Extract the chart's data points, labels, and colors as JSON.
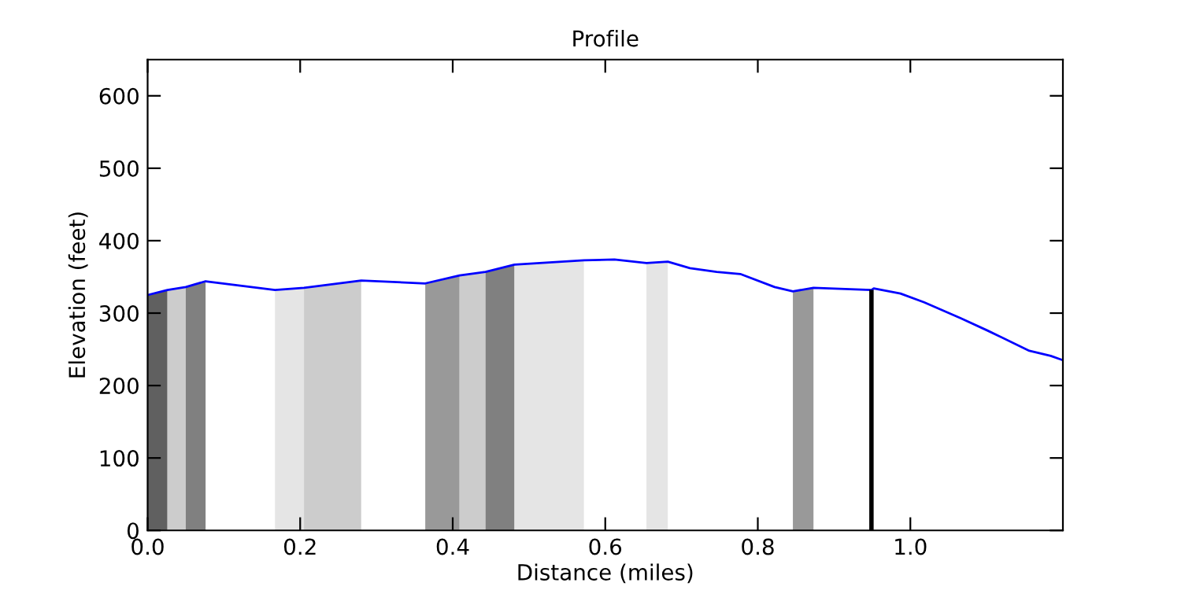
{
  "chart_data": {
    "type": "line",
    "title": "Profile",
    "xlabel": "Distance (miles)",
    "ylabel": "Elevation (feet)",
    "series": [
      {
        "color": "#0000ff",
        "x": [
          0,
          0.026,
          0.05,
          0.076,
          0.167,
          0.205,
          0.28,
          0.364,
          0.409,
          0.443,
          0.481,
          0.572,
          0.612,
          0.654,
          0.682,
          0.711,
          0.746,
          0.777,
          0.822,
          0.846,
          0.873,
          0.949,
          0.952,
          0.987,
          1.018,
          1.066,
          1.101,
          1.156,
          1.184,
          1.2
        ],
        "values": [
          325,
          332,
          336,
          344,
          332,
          335,
          345,
          341,
          352,
          357,
          367,
          373,
          374,
          369,
          371,
          362,
          357,
          354,
          336,
          330,
          335,
          332,
          334,
          327,
          315,
          293,
          276,
          248,
          241,
          235
        ]
      }
    ],
    "bands": [
      {
        "axis": "x",
        "from": 0,
        "to": 0.026,
        "color": "#606060"
      },
      {
        "axis": "x",
        "from": 0.026,
        "to": 0.05,
        "color": "#cccccc"
      },
      {
        "axis": "x",
        "from": 0.05,
        "to": 0.076,
        "color": "#808080"
      },
      {
        "axis": "x",
        "from": 0.167,
        "to": 0.205,
        "color": "#e5e5e5"
      },
      {
        "axis": "x",
        "from": 0.205,
        "to": 0.28,
        "color": "#cccccc"
      },
      {
        "axis": "x",
        "from": 0.364,
        "to": 0.409,
        "color": "#999999"
      },
      {
        "axis": "x",
        "from": 0.409,
        "to": 0.443,
        "color": "#cccccc"
      },
      {
        "axis": "x",
        "from": 0.443,
        "to": 0.481,
        "color": "#808080"
      },
      {
        "axis": "x",
        "from": 0.481,
        "to": 0.572,
        "color": "#e5e5e5"
      },
      {
        "axis": "x",
        "from": 0.654,
        "to": 0.682,
        "color": "#e5e5e5"
      },
      {
        "axis": "x",
        "from": 0.846,
        "to": 0.873,
        "color": "#999999"
      }
    ],
    "ref_lines": [
      {
        "axis": "x",
        "value": 0.949,
        "color": "#000000"
      }
    ],
    "xlim": [
      0,
      1.2
    ],
    "xticks": [
      {
        "value": 0,
        "label": "0.0"
      },
      0.2,
      0.4,
      0.6,
      0.8,
      {
        "value": 1,
        "label": "1.0"
      }
    ],
    "ylim": [
      0,
      650
    ],
    "yticks": [
      0,
      100,
      200,
      300,
      400,
      500,
      600
    ],
    "grid": false,
    "legend": false
  }
}
